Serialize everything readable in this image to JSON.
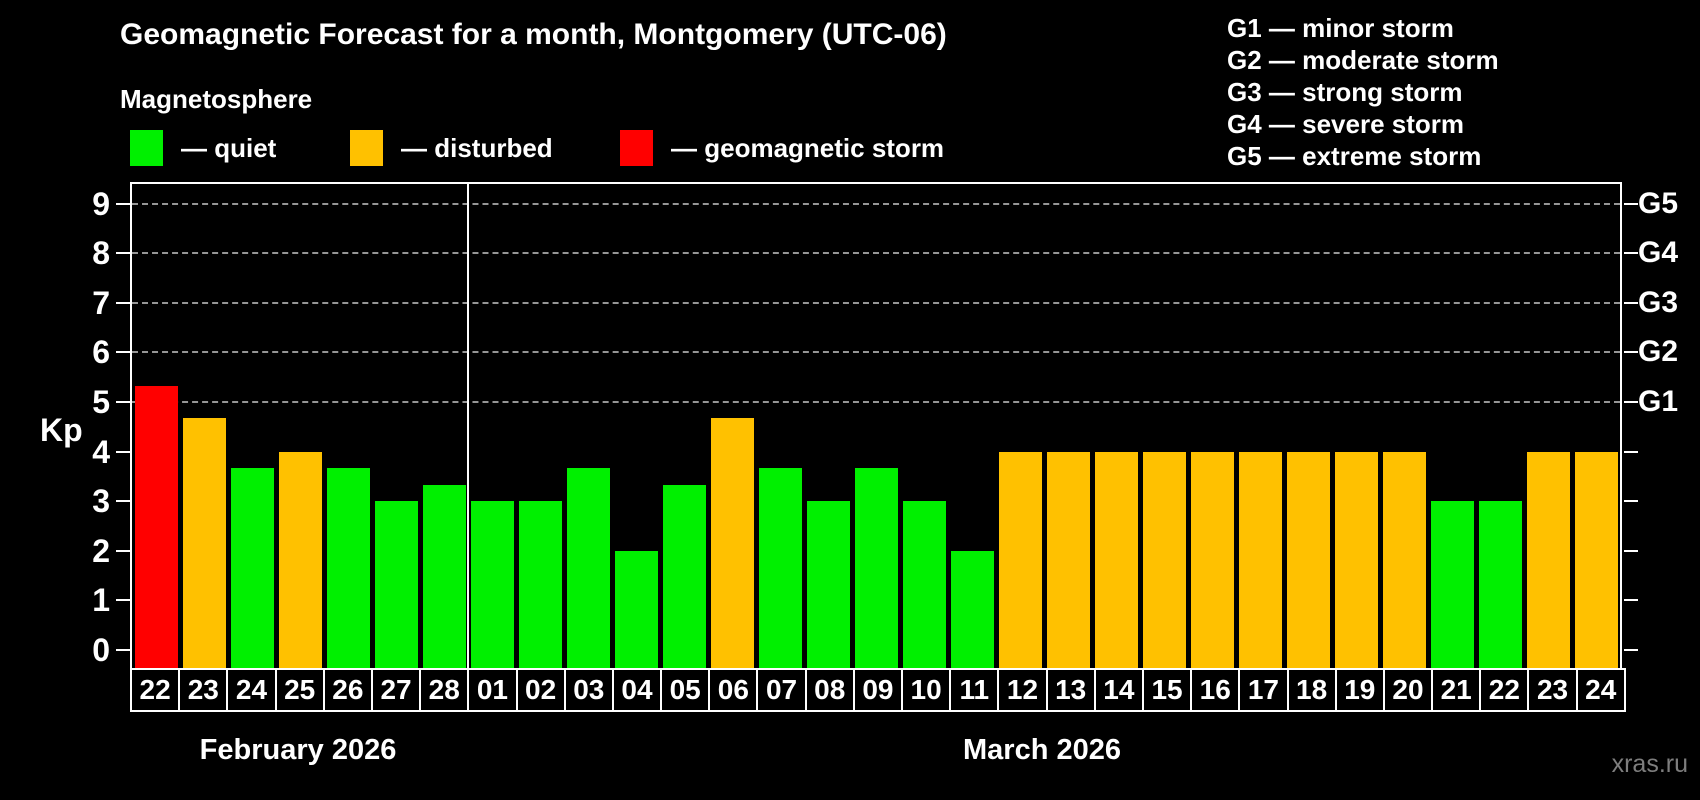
{
  "title": "Geomagnetic Forecast for a month, Montgomery (UTC-06)",
  "subtitle": "Magnetosphere",
  "legend": {
    "items": [
      {
        "key": "quiet",
        "label": "— quiet",
        "color": "#00f000"
      },
      {
        "key": "disturbed",
        "label": "— disturbed",
        "color": "#ffc100"
      },
      {
        "key": "storm",
        "label": "— geomagnetic storm",
        "color": "#ff0000"
      }
    ]
  },
  "storm_scale": [
    "G1 — minor storm",
    "G2 — moderate storm",
    "G3 — strong storm",
    "G4 — severe storm",
    "G5 — extreme storm"
  ],
  "watermark": "xras.ru",
  "chart_data": {
    "type": "bar",
    "ylabel": "Kp",
    "ylim": [
      0,
      9.5
    ],
    "grid": "dashed horizontal at Kp 5-9 only",
    "legend_position": "top-left",
    "y_ticks": [
      0,
      1,
      2,
      3,
      4,
      5,
      6,
      7,
      8,
      9
    ],
    "gridlines_at": [
      5,
      6,
      7,
      8,
      9
    ],
    "right_axis": [
      {
        "kp": 5,
        "label": "G1"
      },
      {
        "kp": 6,
        "label": "G2"
      },
      {
        "kp": 7,
        "label": "G3"
      },
      {
        "kp": 8,
        "label": "G4"
      },
      {
        "kp": 9,
        "label": "G5"
      }
    ],
    "months": [
      {
        "label": "February 2026",
        "days": 7
      },
      {
        "label": "March 2026",
        "days": 24
      }
    ],
    "state_colors": {
      "quiet": "#00f000",
      "disturbed": "#ffc100",
      "storm": "#ff0000"
    },
    "bars": [
      {
        "day": "22",
        "kp": 5.33,
        "state": "storm"
      },
      {
        "day": "23",
        "kp": 4.67,
        "state": "disturbed"
      },
      {
        "day": "24",
        "kp": 3.67,
        "state": "quiet"
      },
      {
        "day": "25",
        "kp": 4,
        "state": "disturbed"
      },
      {
        "day": "26",
        "kp": 3.67,
        "state": "quiet"
      },
      {
        "day": "27",
        "kp": 3,
        "state": "quiet"
      },
      {
        "day": "28",
        "kp": 3.33,
        "state": "quiet"
      },
      {
        "day": "01",
        "kp": 3,
        "state": "quiet"
      },
      {
        "day": "02",
        "kp": 3,
        "state": "quiet"
      },
      {
        "day": "03",
        "kp": 3.67,
        "state": "quiet"
      },
      {
        "day": "04",
        "kp": 2,
        "state": "quiet"
      },
      {
        "day": "05",
        "kp": 3.33,
        "state": "quiet"
      },
      {
        "day": "06",
        "kp": 4.67,
        "state": "disturbed"
      },
      {
        "day": "07",
        "kp": 3.67,
        "state": "quiet"
      },
      {
        "day": "08",
        "kp": 3,
        "state": "quiet"
      },
      {
        "day": "09",
        "kp": 3.67,
        "state": "quiet"
      },
      {
        "day": "10",
        "kp": 3,
        "state": "quiet"
      },
      {
        "day": "11",
        "kp": 2,
        "state": "quiet"
      },
      {
        "day": "12",
        "kp": 4,
        "state": "disturbed"
      },
      {
        "day": "13",
        "kp": 4,
        "state": "disturbed"
      },
      {
        "day": "14",
        "kp": 4,
        "state": "disturbed"
      },
      {
        "day": "15",
        "kp": 4,
        "state": "disturbed"
      },
      {
        "day": "16",
        "kp": 4,
        "state": "disturbed"
      },
      {
        "day": "17",
        "kp": 4,
        "state": "disturbed"
      },
      {
        "day": "18",
        "kp": 4,
        "state": "disturbed"
      },
      {
        "day": "19",
        "kp": 4,
        "state": "disturbed"
      },
      {
        "day": "20",
        "kp": 4,
        "state": "disturbed"
      },
      {
        "day": "21",
        "kp": 3,
        "state": "quiet"
      },
      {
        "day": "22",
        "kp": 3,
        "state": "quiet"
      },
      {
        "day": "23",
        "kp": 4,
        "state": "disturbed"
      },
      {
        "day": "24",
        "kp": 4,
        "state": "disturbed"
      }
    ]
  }
}
